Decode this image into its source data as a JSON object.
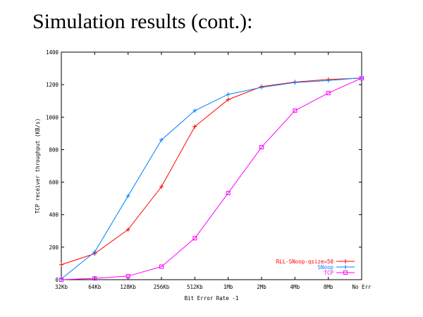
{
  "slide": {
    "title": "Simulation results (cont.):"
  },
  "chart_data": {
    "type": "line",
    "xlabel": "Bit Error Rate -1",
    "ylabel": "TCP receiver throughput (KB/s)",
    "categories": [
      "32Kb",
      "64Kb",
      "128Kb",
      "256Kb",
      "512Kb",
      "1Mb",
      "2Mb",
      "4Mb",
      "8Mb",
      "No Err"
    ],
    "ylim": [
      0,
      1400
    ],
    "yticks": [
      0,
      200,
      400,
      600,
      800,
      1000,
      1200,
      1400
    ],
    "grid": false,
    "legend_position": "bottom-right",
    "series": [
      {
        "name": "RLL-SNoop-qsize=50",
        "color": "#ff0000",
        "marker": "plus",
        "values": [
          92,
          160,
          308,
          572,
          942,
          1108,
          1188,
          1216,
          1232,
          1240
        ]
      },
      {
        "name": "SNoop",
        "color": "#0080ff",
        "marker": "plus",
        "values": [
          5,
          170,
          515,
          860,
          1040,
          1140,
          1183,
          1213,
          1225,
          1242
        ]
      },
      {
        "name": "TCP",
        "color": "#ff00ff",
        "marker": "square",
        "values": [
          0,
          8,
          22,
          80,
          255,
          533,
          815,
          1040,
          1148,
          1240
        ]
      }
    ]
  }
}
